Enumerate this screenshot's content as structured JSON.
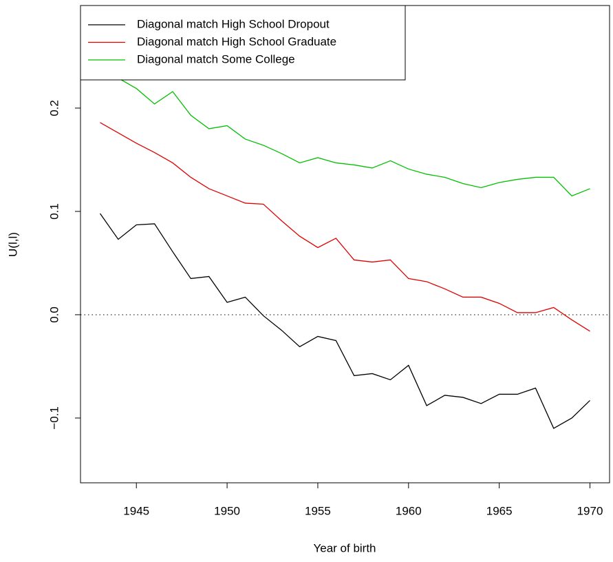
{
  "chart_data": {
    "type": "line",
    "xlabel": "Year of birth",
    "ylabel": "U(l,l)",
    "x": [
      1943,
      1944,
      1945,
      1946,
      1947,
      1948,
      1949,
      1950,
      1951,
      1952,
      1953,
      1954,
      1955,
      1956,
      1957,
      1958,
      1959,
      1960,
      1961,
      1962,
      1963,
      1964,
      1965,
      1966,
      1967,
      1968,
      1969,
      1970
    ],
    "series": [
      {
        "name": "Diagonal match High School Dropout",
        "color": "#000000",
        "values": [
          0.098,
          0.073,
          0.087,
          0.088,
          0.061,
          0.035,
          0.037,
          0.012,
          0.017,
          -0.001,
          -0.015,
          -0.031,
          -0.021,
          -0.025,
          -0.059,
          -0.057,
          -0.063,
          -0.049,
          -0.088,
          -0.078,
          -0.08,
          -0.086,
          -0.077,
          -0.077,
          -0.071,
          -0.11,
          -0.1,
          -0.083
        ]
      },
      {
        "name": "Diagonal match High School Graduate",
        "color": "#df0000",
        "values": [
          0.186,
          0.176,
          0.166,
          0.157,
          0.147,
          0.133,
          0.122,
          0.115,
          0.108,
          0.107,
          0.091,
          0.076,
          0.065,
          0.074,
          0.053,
          0.051,
          0.053,
          0.035,
          0.032,
          0.025,
          0.017,
          0.017,
          0.011,
          0.002,
          0.002,
          0.007,
          -0.005,
          -0.016
        ]
      },
      {
        "name": "Diagonal match Some College",
        "color": "#00c000",
        "values": [
          0.247,
          0.229,
          0.219,
          0.204,
          0.216,
          0.193,
          0.18,
          0.183,
          0.17,
          0.164,
          0.156,
          0.147,
          0.152,
          0.147,
          0.145,
          0.142,
          0.149,
          0.141,
          0.136,
          0.133,
          0.127,
          0.123,
          0.128,
          0.131,
          0.133,
          0.133,
          0.115,
          0.122
        ]
      }
    ],
    "xlim": [
      1941.92,
      1971.08
    ],
    "ylim": [
      -0.1627,
      0.2993
    ],
    "xticks": [
      1945,
      1950,
      1955,
      1960,
      1965,
      1970
    ],
    "yticks": [
      {
        "value": -0.1,
        "label": "−0.1"
      },
      {
        "value": 0,
        "label": "0.0"
      },
      0.1,
      0.2
    ],
    "reference_line": 0,
    "legend": "top-left"
  }
}
